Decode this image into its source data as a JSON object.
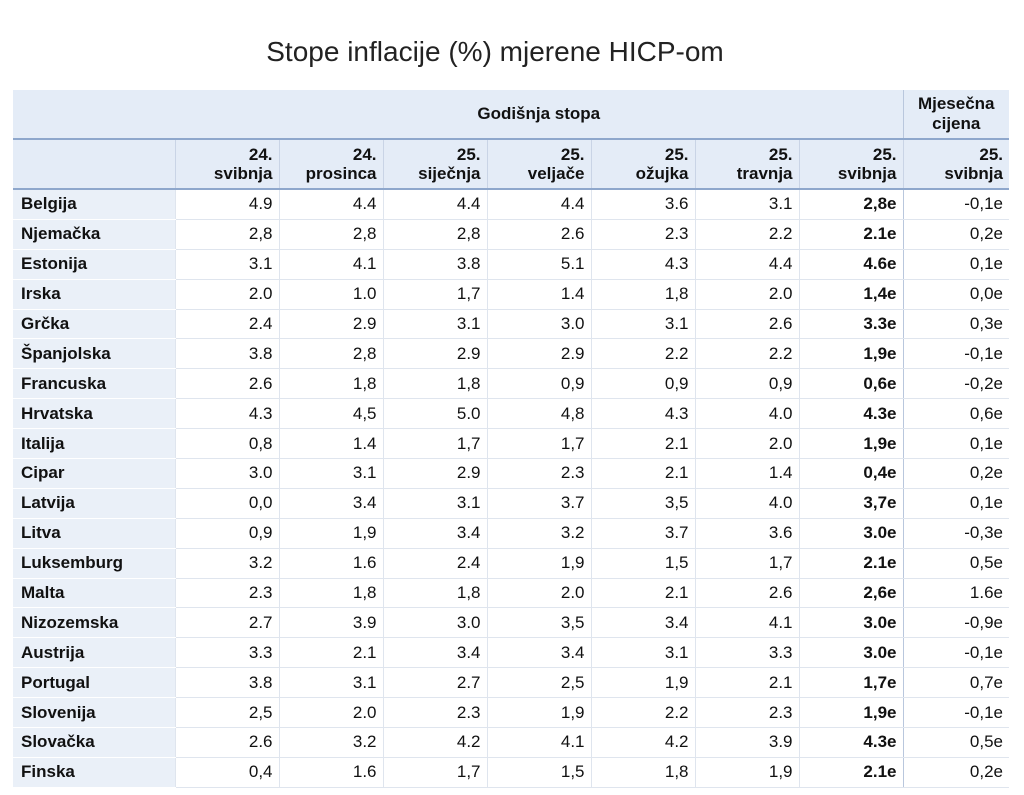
{
  "chart_data": {
    "type": "table",
    "title": "Stope inflacije (%) mjerene HICP-om",
    "group_headers": {
      "annual": "Godišnja stopa",
      "monthly": "Mjesečna cijena"
    },
    "columns": [
      {
        "line1": "24.",
        "line2": "svibnja"
      },
      {
        "line1": "24.",
        "line2": "prosinca"
      },
      {
        "line1": "25.",
        "line2": "siječnja"
      },
      {
        "line1": "25.",
        "line2": "veljače"
      },
      {
        "line1": "25.",
        "line2": "ožujka"
      },
      {
        "line1": "25.",
        "line2": "travnja"
      },
      {
        "line1": "25.",
        "line2": "svibnja"
      },
      {
        "line1": "25.",
        "line2": "svibnja"
      }
    ],
    "rows": [
      {
        "country": "Belgija",
        "values": [
          "4.9",
          "4.4",
          "4.4",
          "4.4",
          "3.6",
          "3.1",
          "2,8e",
          "-0,1e"
        ]
      },
      {
        "country": "Njemačka",
        "values": [
          "2,8",
          "2,8",
          "2,8",
          "2.6",
          "2.3",
          "2.2",
          "2.1e",
          "0,2e"
        ]
      },
      {
        "country": "Estonija",
        "values": [
          "3.1",
          "4.1",
          "3.8",
          "5.1",
          "4.3",
          "4.4",
          "4.6e",
          "0,1e"
        ]
      },
      {
        "country": "Irska",
        "values": [
          "2.0",
          "1.0",
          "1,7",
          "1.4",
          "1,8",
          "2.0",
          "1,4e",
          "0,0e"
        ]
      },
      {
        "country": "Grčka",
        "values": [
          "2.4",
          "2.9",
          "3.1",
          "3.0",
          "3.1",
          "2.6",
          "3.3e",
          "0,3e"
        ]
      },
      {
        "country": "Španjolska",
        "values": [
          "3.8",
          "2,8",
          "2.9",
          "2.9",
          "2.2",
          "2.2",
          "1,9e",
          "-0,1e"
        ]
      },
      {
        "country": "Francuska",
        "values": [
          "2.6",
          "1,8",
          "1,8",
          "0,9",
          "0,9",
          "0,9",
          "0,6e",
          "-0,2e"
        ]
      },
      {
        "country": "Hrvatska",
        "values": [
          "4.3",
          "4,5",
          "5.0",
          "4,8",
          "4.3",
          "4.0",
          "4.3e",
          "0,6e"
        ]
      },
      {
        "country": "Italija",
        "values": [
          "0,8",
          "1.4",
          "1,7",
          "1,7",
          "2.1",
          "2.0",
          "1,9e",
          "0,1e"
        ]
      },
      {
        "country": "Cipar",
        "values": [
          "3.0",
          "3.1",
          "2.9",
          "2.3",
          "2.1",
          "1.4",
          "0,4e",
          "0,2e"
        ]
      },
      {
        "country": "Latvija",
        "values": [
          "0,0",
          "3.4",
          "3.1",
          "3.7",
          "3,5",
          "4.0",
          "3,7e",
          "0,1e"
        ]
      },
      {
        "country": "Litva",
        "values": [
          "0,9",
          "1,9",
          "3.4",
          "3.2",
          "3.7",
          "3.6",
          "3.0e",
          "-0,3e"
        ]
      },
      {
        "country": "Luksemburg",
        "values": [
          "3.2",
          "1.6",
          "2.4",
          "1,9",
          "1,5",
          "1,7",
          "2.1e",
          "0,5e"
        ]
      },
      {
        "country": "Malta",
        "values": [
          "2.3",
          "1,8",
          "1,8",
          "2.0",
          "2.1",
          "2.6",
          "2,6e",
          "1.6e"
        ]
      },
      {
        "country": "Nizozemska",
        "values": [
          "2.7",
          "3.9",
          "3.0",
          "3,5",
          "3.4",
          "4.1",
          "3.0e",
          "-0,9e"
        ]
      },
      {
        "country": "Austrija",
        "values": [
          "3.3",
          "2.1",
          "3.4",
          "3.4",
          "3.1",
          "3.3",
          "3.0e",
          "-0,1e"
        ]
      },
      {
        "country": "Portugal",
        "values": [
          "3.8",
          "3.1",
          "2.7",
          "2,5",
          "1,9",
          "2.1",
          "1,7e",
          "0,7e"
        ]
      },
      {
        "country": "Slovenija",
        "values": [
          "2,5",
          "2.0",
          "2.3",
          "1,9",
          "2.2",
          "2.3",
          "1,9e",
          "-0,1e"
        ]
      },
      {
        "country": "Slovačka",
        "values": [
          "2.6",
          "3.2",
          "4.2",
          "4.1",
          "4.2",
          "3.9",
          "4.3e",
          "0,5e"
        ]
      },
      {
        "country": "Finska",
        "values": [
          "0,4",
          "1.6",
          "1,7",
          "1,5",
          "1,8",
          "1,9",
          "2.1e",
          "0,2e"
        ]
      }
    ]
  }
}
